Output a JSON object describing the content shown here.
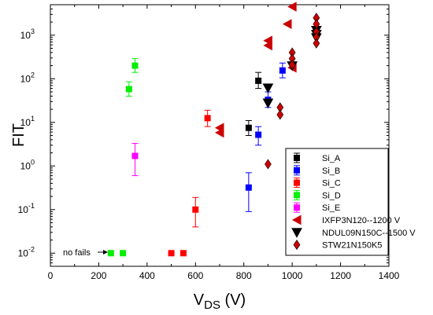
{
  "chart_data": {
    "type": "scatter",
    "xlabel_main": "V",
    "xlabel_sub": "DS",
    "xlabel_unit": " (V)",
    "ylabel": "FIT",
    "xlim": [
      0,
      1400
    ],
    "ylim": [
      0.005,
      5000
    ],
    "yscale": "log",
    "x_ticks": [
      0,
      200,
      400,
      600,
      800,
      1000,
      1200,
      1400
    ],
    "y_ticks": [
      {
        "value": 0.01,
        "base": "10",
        "exp": "-2"
      },
      {
        "value": 0.1,
        "base": "10",
        "exp": "-1"
      },
      {
        "value": 1,
        "base": "10",
        "exp": "0"
      },
      {
        "value": 10,
        "base": "10",
        "exp": "1"
      },
      {
        "value": 100,
        "base": "10",
        "exp": "2"
      },
      {
        "value": 1000,
        "base": "10",
        "exp": "3"
      }
    ],
    "grid": false,
    "legend_position": "lower-right",
    "annotation": {
      "text": "no fails",
      "x": 250,
      "y": 0.01
    },
    "series": [
      {
        "name": "Si_A",
        "color": "#000000",
        "marker": "square",
        "points": [
          {
            "x": 820,
            "y": 7.5,
            "lo": 5,
            "hi": 11
          },
          {
            "x": 860,
            "y": 90,
            "lo": 60,
            "hi": 140
          }
        ]
      },
      {
        "name": "Si_B",
        "color": "#0000ff",
        "marker": "square",
        "points": [
          {
            "x": 820,
            "y": 0.32,
            "lo": 0.09,
            "hi": 0.7
          },
          {
            "x": 860,
            "y": 5.2,
            "lo": 3,
            "hi": 8
          },
          {
            "x": 900,
            "y": 33,
            "lo": 22,
            "hi": 50
          },
          {
            "x": 960,
            "y": 155,
            "lo": 105,
            "hi": 230
          }
        ]
      },
      {
        "name": "Si_C",
        "color": "#ff0000",
        "marker": "square",
        "points": [
          {
            "x": 500,
            "y": 0.01
          },
          {
            "x": 550,
            "y": 0.01
          },
          {
            "x": 600,
            "y": 0.1,
            "lo": 0.04,
            "hi": 0.19
          },
          {
            "x": 650,
            "y": 12.5,
            "lo": 8,
            "hi": 19
          }
        ]
      },
      {
        "name": "Si_D",
        "color": "#00ee00",
        "marker": "square",
        "points": [
          {
            "x": 250,
            "y": 0.01
          },
          {
            "x": 300,
            "y": 0.01
          },
          {
            "x": 325,
            "y": 58,
            "lo": 40,
            "hi": 85
          },
          {
            "x": 350,
            "y": 200,
            "lo": 140,
            "hi": 290
          }
        ]
      },
      {
        "name": "Si_E",
        "color": "#ff00ff",
        "marker": "square",
        "points": [
          {
            "x": 350,
            "y": 1.7,
            "lo": 0.6,
            "hi": 3.3
          }
        ]
      },
      {
        "name": "IXFP3N120--1200 V",
        "color": "#cc0000",
        "marker": "triangle-left",
        "points": [
          {
            "x": 700,
            "y": 7.5
          },
          {
            "x": 700,
            "y": 5.8
          },
          {
            "x": 900,
            "y": 750
          },
          {
            "x": 900,
            "y": 580
          },
          {
            "x": 980,
            "y": 1800
          },
          {
            "x": 1000,
            "y": 4500
          },
          {
            "x": 1000,
            "y": 180
          }
        ]
      },
      {
        "name": "NDUL09N150C--1500 V",
        "color": "#000000",
        "marker": "triangle-down",
        "points": [
          {
            "x": 900,
            "y": 62
          },
          {
            "x": 900,
            "y": 28
          },
          {
            "x": 1000,
            "y": 200
          },
          {
            "x": 1100,
            "y": 1300
          },
          {
            "x": 1100,
            "y": 1050
          },
          {
            "x": 1100,
            "y": 880
          }
        ]
      },
      {
        "name": "STW21N150K5",
        "color": "#cc0000",
        "marker": "diamond",
        "points": [
          {
            "x": 900,
            "y": 1.1
          },
          {
            "x": 950,
            "y": 22
          },
          {
            "x": 950,
            "y": 15
          },
          {
            "x": 1000,
            "y": 400
          },
          {
            "x": 1000,
            "y": 290
          },
          {
            "x": 1000,
            "y": 210
          },
          {
            "x": 1100,
            "y": 2500
          },
          {
            "x": 1100,
            "y": 1800
          },
          {
            "x": 1100,
            "y": 1200
          },
          {
            "x": 1100,
            "y": 900
          },
          {
            "x": 1100,
            "y": 650
          }
        ]
      }
    ]
  }
}
